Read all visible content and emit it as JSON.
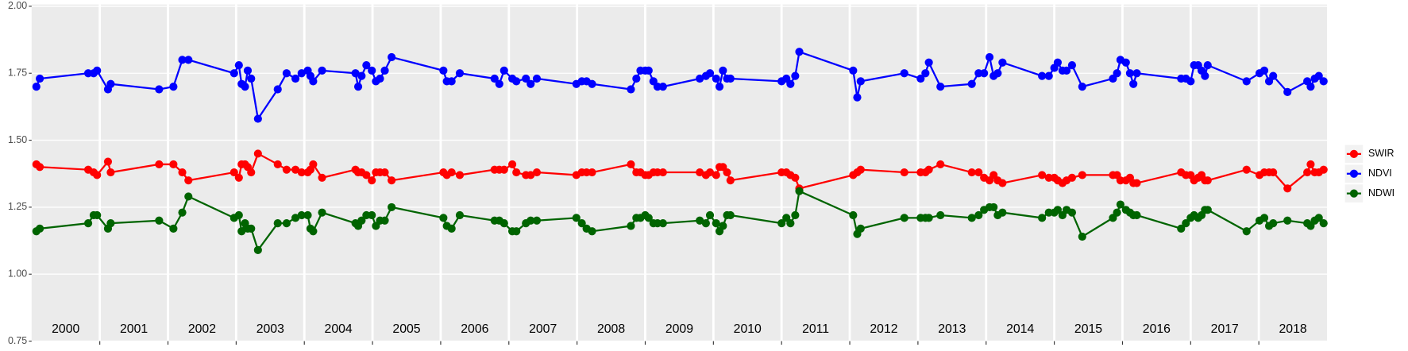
{
  "chart_data": {
    "type": "line",
    "xlim": [
      2000,
      2019
    ],
    "xticks": [
      2001,
      2002,
      2003,
      2004,
      2005,
      2006,
      2007,
      2008,
      2009,
      2010,
      2011,
      2012,
      2013,
      2014,
      2015,
      2016,
      2017,
      2018
    ],
    "year_labels": [
      "2000",
      "2001",
      "2002",
      "2003",
      "2004",
      "2005",
      "2006",
      "2007",
      "2008",
      "2009",
      "2010",
      "2011",
      "2012",
      "2013",
      "2014",
      "2015",
      "2016",
      "2017",
      "2018"
    ],
    "ylim": [
      0.75,
      2.0
    ],
    "yticks": [
      {
        "value": 0.75,
        "label": "0.75"
      },
      {
        "value": 1.0,
        "label": "1.00"
      },
      {
        "value": 1.25,
        "label": "1.25"
      },
      {
        "value": 1.5,
        "label": "1.50"
      },
      {
        "value": 1.75,
        "label": "1.75"
      },
      {
        "value": 2.0,
        "label": "2.00"
      }
    ],
    "grid": true,
    "legend": "right",
    "x": [
      2000.07,
      2000.12,
      2000.83,
      2000.91,
      2000.96,
      2001.12,
      2001.16,
      2001.87,
      2002.08,
      2002.21,
      2002.3,
      2002.97,
      2003.04,
      2003.08,
      2003.13,
      2003.17,
      2003.22,
      2003.32,
      2003.61,
      2003.74,
      2003.87,
      2003.96,
      2004.05,
      2004.09,
      2004.13,
      2004.26,
      2004.75,
      2004.79,
      2004.84,
      2004.91,
      2004.99,
      2005.05,
      2005.11,
      2005.18,
      2005.28,
      2006.04,
      2006.09,
      2006.16,
      2006.28,
      2006.79,
      2006.86,
      2006.93,
      2007.05,
      2007.11,
      2007.25,
      2007.32,
      2007.41,
      2007.99,
      2008.07,
      2008.14,
      2008.22,
      2008.79,
      2008.87,
      2008.93,
      2009.0,
      2009.05,
      2009.12,
      2009.18,
      2009.26,
      2009.8,
      2009.89,
      2009.95,
      2010.04,
      2010.09,
      2010.14,
      2010.2,
      2010.25,
      2011.0,
      2011.07,
      2011.13,
      2011.2,
      2011.26,
      2012.05,
      2012.11,
      2012.16,
      2012.8,
      2013.04,
      2013.11,
      2013.16,
      2013.33,
      2013.79,
      2013.89,
      2013.97,
      2014.05,
      2014.11,
      2014.17,
      2014.24,
      2014.82,
      2014.92,
      2015.0,
      2015.05,
      2015.12,
      2015.18,
      2015.26,
      2015.41,
      2015.86,
      2015.92,
      2015.97,
      2016.05,
      2016.11,
      2016.16,
      2016.21,
      2016.86,
      2016.93,
      2017.0,
      2017.05,
      2017.11,
      2017.16,
      2017.21,
      2017.25,
      2017.82,
      2018.01,
      2018.08,
      2018.15,
      2018.21,
      2018.42,
      2018.71,
      2018.76,
      2018.82,
      2018.88,
      2018.95
    ],
    "series": [
      {
        "name": "SWIR",
        "color": "#ff0000",
        "values": [
          1.41,
          1.4,
          1.39,
          1.38,
          1.37,
          1.42,
          1.38,
          1.41,
          1.41,
          1.38,
          1.35,
          1.38,
          1.36,
          1.41,
          1.41,
          1.4,
          1.38,
          1.45,
          1.41,
          1.39,
          1.39,
          1.38,
          1.38,
          1.39,
          1.41,
          1.36,
          1.39,
          1.38,
          1.38,
          1.37,
          1.35,
          1.38,
          1.38,
          1.38,
          1.35,
          1.38,
          1.37,
          1.38,
          1.37,
          1.39,
          1.39,
          1.39,
          1.41,
          1.38,
          1.37,
          1.37,
          1.38,
          1.37,
          1.38,
          1.38,
          1.38,
          1.41,
          1.38,
          1.38,
          1.37,
          1.37,
          1.38,
          1.38,
          1.38,
          1.38,
          1.37,
          1.38,
          1.37,
          1.4,
          1.4,
          1.38,
          1.35,
          1.38,
          1.38,
          1.37,
          1.36,
          1.32,
          1.37,
          1.38,
          1.39,
          1.38,
          1.38,
          1.38,
          1.39,
          1.41,
          1.38,
          1.38,
          1.36,
          1.35,
          1.37,
          1.35,
          1.34,
          1.37,
          1.36,
          1.36,
          1.35,
          1.34,
          1.35,
          1.36,
          1.37,
          1.37,
          1.37,
          1.35,
          1.35,
          1.36,
          1.34,
          1.34,
          1.38,
          1.37,
          1.37,
          1.35,
          1.36,
          1.37,
          1.35,
          1.35,
          1.39,
          1.37,
          1.38,
          1.38,
          1.38,
          1.32,
          1.38,
          1.41,
          1.38,
          1.38,
          1.39
        ]
      },
      {
        "name": "NDVI",
        "color": "#0000ff",
        "values": [
          1.7,
          1.73,
          1.75,
          1.75,
          1.76,
          1.69,
          1.71,
          1.69,
          1.7,
          1.8,
          1.8,
          1.75,
          1.78,
          1.71,
          1.7,
          1.76,
          1.73,
          1.58,
          1.69,
          1.75,
          1.73,
          1.75,
          1.76,
          1.74,
          1.72,
          1.76,
          1.75,
          1.7,
          1.74,
          1.78,
          1.76,
          1.72,
          1.73,
          1.76,
          1.81,
          1.76,
          1.72,
          1.72,
          1.75,
          1.73,
          1.71,
          1.76,
          1.73,
          1.72,
          1.73,
          1.71,
          1.73,
          1.71,
          1.72,
          1.72,
          1.71,
          1.69,
          1.73,
          1.76,
          1.76,
          1.76,
          1.72,
          1.7,
          1.7,
          1.73,
          1.74,
          1.75,
          1.73,
          1.7,
          1.76,
          1.73,
          1.73,
          1.72,
          1.73,
          1.71,
          1.74,
          1.83,
          1.76,
          1.66,
          1.72,
          1.75,
          1.73,
          1.75,
          1.79,
          1.7,
          1.71,
          1.75,
          1.75,
          1.81,
          1.74,
          1.75,
          1.79,
          1.74,
          1.74,
          1.77,
          1.79,
          1.76,
          1.76,
          1.78,
          1.7,
          1.73,
          1.75,
          1.8,
          1.79,
          1.75,
          1.71,
          1.75,
          1.73,
          1.73,
          1.72,
          1.78,
          1.78,
          1.76,
          1.74,
          1.78,
          1.72,
          1.75,
          1.76,
          1.72,
          1.74,
          1.68,
          1.72,
          1.7,
          1.73,
          1.74,
          1.72
        ]
      },
      {
        "name": "NDWI",
        "color": "#006400",
        "values": [
          1.16,
          1.17,
          1.19,
          1.22,
          1.22,
          1.17,
          1.19,
          1.2,
          1.17,
          1.23,
          1.29,
          1.21,
          1.22,
          1.16,
          1.19,
          1.17,
          1.17,
          1.09,
          1.19,
          1.19,
          1.21,
          1.22,
          1.22,
          1.17,
          1.16,
          1.23,
          1.19,
          1.18,
          1.2,
          1.22,
          1.22,
          1.18,
          1.2,
          1.2,
          1.25,
          1.21,
          1.18,
          1.17,
          1.22,
          1.2,
          1.2,
          1.19,
          1.16,
          1.16,
          1.19,
          1.2,
          1.2,
          1.21,
          1.19,
          1.17,
          1.16,
          1.18,
          1.21,
          1.21,
          1.22,
          1.21,
          1.19,
          1.19,
          1.19,
          1.2,
          1.19,
          1.22,
          1.19,
          1.16,
          1.18,
          1.22,
          1.22,
          1.19,
          1.21,
          1.19,
          1.22,
          1.31,
          1.22,
          1.15,
          1.17,
          1.21,
          1.21,
          1.21,
          1.21,
          1.22,
          1.21,
          1.22,
          1.24,
          1.25,
          1.25,
          1.22,
          1.23,
          1.21,
          1.23,
          1.23,
          1.24,
          1.22,
          1.24,
          1.23,
          1.14,
          1.21,
          1.23,
          1.26,
          1.24,
          1.23,
          1.22,
          1.22,
          1.17,
          1.19,
          1.21,
          1.22,
          1.21,
          1.22,
          1.24,
          1.24,
          1.16,
          1.2,
          1.21,
          1.18,
          1.19,
          1.2,
          1.19,
          1.18,
          1.2,
          1.21,
          1.19
        ]
      }
    ]
  }
}
